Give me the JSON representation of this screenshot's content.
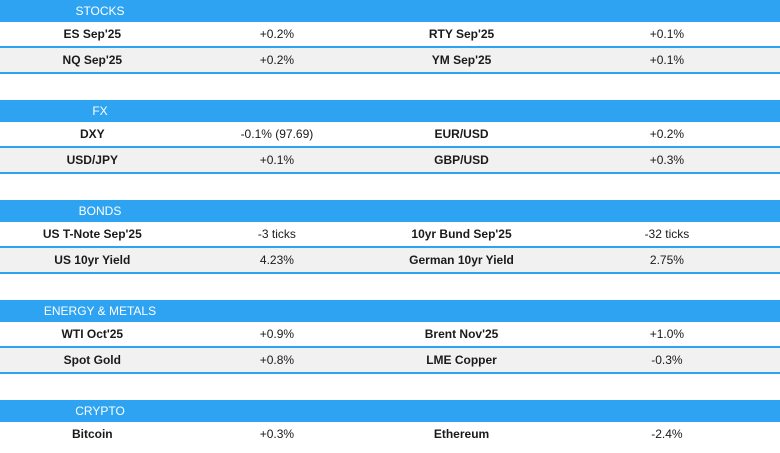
{
  "sections": [
    {
      "title": "STOCKS",
      "rows": [
        {
          "a_name": "ES Sep'25",
          "a_val": "+0.2%",
          "b_name": "RTY Sep'25",
          "b_val": "+0.1%"
        },
        {
          "a_name": "NQ Sep'25",
          "a_val": "+0.2%",
          "b_name": "YM Sep'25",
          "b_val": "+0.1%"
        }
      ]
    },
    {
      "title": "FX",
      "rows": [
        {
          "a_name": "DXY",
          "a_val": "-0.1% (97.69)",
          "b_name": "EUR/USD",
          "b_val": "+0.2%"
        },
        {
          "a_name": "USD/JPY",
          "a_val": "+0.1%",
          "b_name": "GBP/USD",
          "b_val": "+0.3%"
        }
      ]
    },
    {
      "title": "BONDS",
      "rows": [
        {
          "a_name": "US T-Note Sep'25",
          "a_val": "-3 ticks",
          "b_name": "10yr Bund Sep'25",
          "b_val": "-32 ticks"
        },
        {
          "a_name": "US 10yr Yield",
          "a_val": "4.23%",
          "b_name": "German 10yr Yield",
          "b_val": "2.75%"
        }
      ]
    },
    {
      "title": "ENERGY & METALS",
      "rows": [
        {
          "a_name": "WTI Oct'25",
          "a_val": "+0.9%",
          "b_name": "Brent Nov'25",
          "b_val": "+1.0%"
        },
        {
          "a_name": "Spot Gold",
          "a_val": "+0.8%",
          "b_name": "LME Copper",
          "b_val": "-0.3%"
        }
      ]
    },
    {
      "title": "CRYPTO",
      "rows": [
        {
          "a_name": "Bitcoin",
          "a_val": "+0.3%",
          "b_name": "Ethereum",
          "b_val": "-2.4%"
        }
      ]
    }
  ],
  "colors": {
    "accent": "#2ea3f2",
    "alt_row": "#f1f1f1"
  }
}
